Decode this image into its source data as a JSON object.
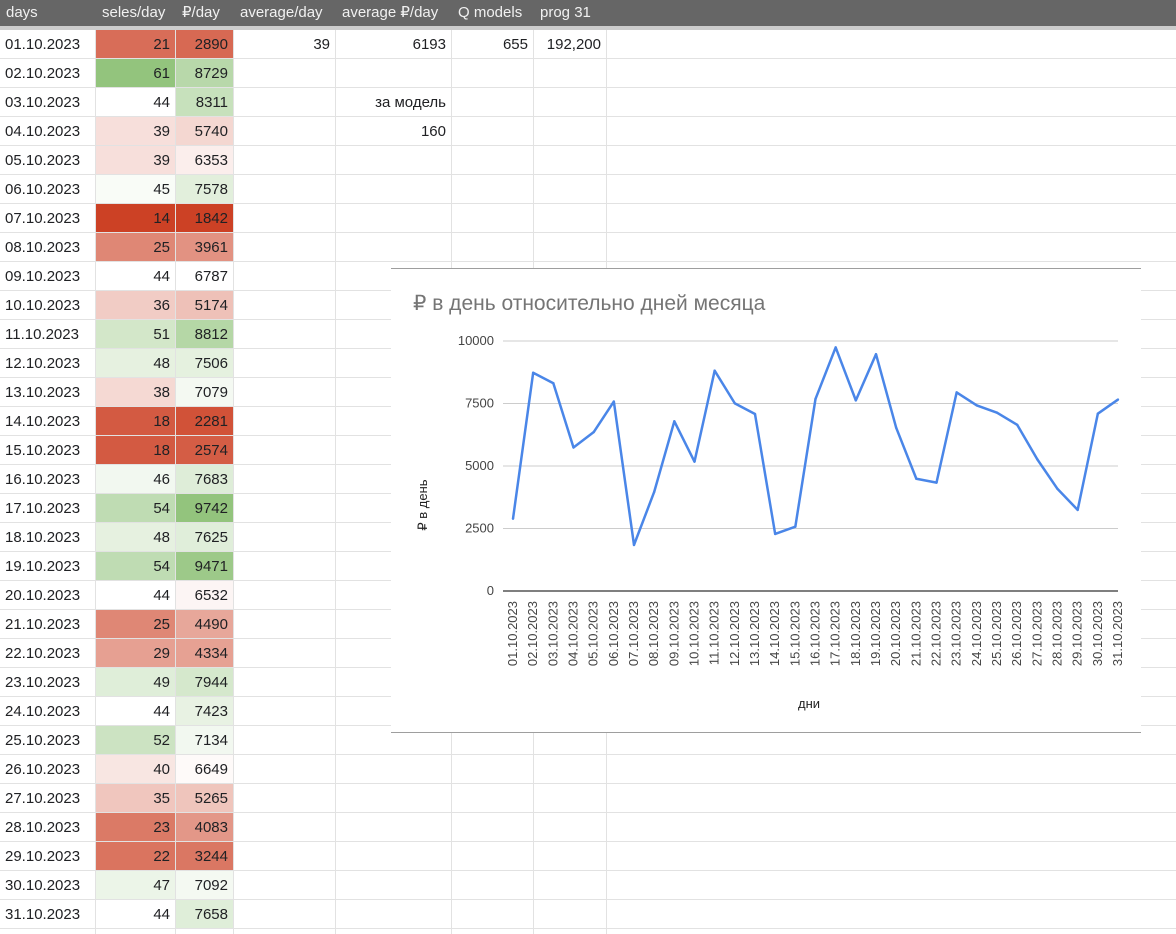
{
  "header": {
    "columns": [
      "days",
      "seles/day",
      "₽/day",
      "average/day",
      "average ₽/day",
      "Q models",
      "prog 31"
    ]
  },
  "summary": {
    "average_day": "39",
    "average_rub_day": "6193",
    "q_models": "655",
    "prog31": "192,200",
    "per_model_label": "за модель",
    "per_model_value": "160"
  },
  "rows": [
    {
      "day": "01.10.2023",
      "sales": 21,
      "rub": 2890
    },
    {
      "day": "02.10.2023",
      "sales": 61,
      "rub": 8729
    },
    {
      "day": "03.10.2023",
      "sales": 44,
      "rub": 8311
    },
    {
      "day": "04.10.2023",
      "sales": 39,
      "rub": 5740
    },
    {
      "day": "05.10.2023",
      "sales": 39,
      "rub": 6353
    },
    {
      "day": "06.10.2023",
      "sales": 45,
      "rub": 7578
    },
    {
      "day": "07.10.2023",
      "sales": 14,
      "rub": 1842
    },
    {
      "day": "08.10.2023",
      "sales": 25,
      "rub": 3961
    },
    {
      "day": "09.10.2023",
      "sales": 44,
      "rub": 6787
    },
    {
      "day": "10.10.2023",
      "sales": 36,
      "rub": 5174
    },
    {
      "day": "11.10.2023",
      "sales": 51,
      "rub": 8812
    },
    {
      "day": "12.10.2023",
      "sales": 48,
      "rub": 7506
    },
    {
      "day": "13.10.2023",
      "sales": 38,
      "rub": 7079
    },
    {
      "day": "14.10.2023",
      "sales": 18,
      "rub": 2281
    },
    {
      "day": "15.10.2023",
      "sales": 18,
      "rub": 2574
    },
    {
      "day": "16.10.2023",
      "sales": 46,
      "rub": 7683
    },
    {
      "day": "17.10.2023",
      "sales": 54,
      "rub": 9742
    },
    {
      "day": "18.10.2023",
      "sales": 48,
      "rub": 7625
    },
    {
      "day": "19.10.2023",
      "sales": 54,
      "rub": 9471
    },
    {
      "day": "20.10.2023",
      "sales": 44,
      "rub": 6532
    },
    {
      "day": "21.10.2023",
      "sales": 25,
      "rub": 4490
    },
    {
      "day": "22.10.2023",
      "sales": 29,
      "rub": 4334
    },
    {
      "day": "23.10.2023",
      "sales": 49,
      "rub": 7944
    },
    {
      "day": "24.10.2023",
      "sales": 44,
      "rub": 7423
    },
    {
      "day": "25.10.2023",
      "sales": 52,
      "rub": 7134
    },
    {
      "day": "26.10.2023",
      "sales": 40,
      "rub": 6649
    },
    {
      "day": "27.10.2023",
      "sales": 35,
      "rub": 5265
    },
    {
      "day": "28.10.2023",
      "sales": 23,
      "rub": 4083
    },
    {
      "day": "29.10.2023",
      "sales": 22,
      "rub": 3244
    },
    {
      "day": "30.10.2023",
      "sales": 47,
      "rub": 7092
    },
    {
      "day": "31.10.2023",
      "sales": 44,
      "rub": 7658
    }
  ],
  "colors": {
    "header_bg": "#666666",
    "scale_low": "#cc4125",
    "scale_mid": "#ffffff",
    "scale_high": "#93c47d",
    "line": "#4a86e8"
  },
  "chart_data": {
    "type": "line",
    "title": "₽ в день относительно дней месяца",
    "xlabel": "дни",
    "ylabel": "₽ в день",
    "ylim": [
      0,
      10000
    ],
    "yticks": [
      0,
      2500,
      5000,
      7500,
      10000
    ],
    "grid": true,
    "categories": [
      "01.10.2023",
      "02.10.2023",
      "03.10.2023",
      "04.10.2023",
      "05.10.2023",
      "06.10.2023",
      "07.10.2023",
      "08.10.2023",
      "09.10.2023",
      "10.10.2023",
      "11.10.2023",
      "12.10.2023",
      "13.10.2023",
      "14.10.2023",
      "15.10.2023",
      "16.10.2023",
      "17.10.2023",
      "18.10.2023",
      "19.10.2023",
      "20.10.2023",
      "21.10.2023",
      "22.10.2023",
      "23.10.2023",
      "24.10.2023",
      "25.10.2023",
      "26.10.2023",
      "27.10.2023",
      "28.10.2023",
      "29.10.2023",
      "30.10.2023",
      "31.10.2023"
    ],
    "values": [
      2890,
      8729,
      8311,
      5740,
      6353,
      7578,
      1842,
      3961,
      6787,
      5174,
      8812,
      7506,
      7079,
      2281,
      2574,
      7683,
      9742,
      7625,
      9471,
      6532,
      4490,
      4334,
      7944,
      7423,
      7134,
      6649,
      5265,
      4083,
      3244,
      7092,
      7658
    ]
  }
}
